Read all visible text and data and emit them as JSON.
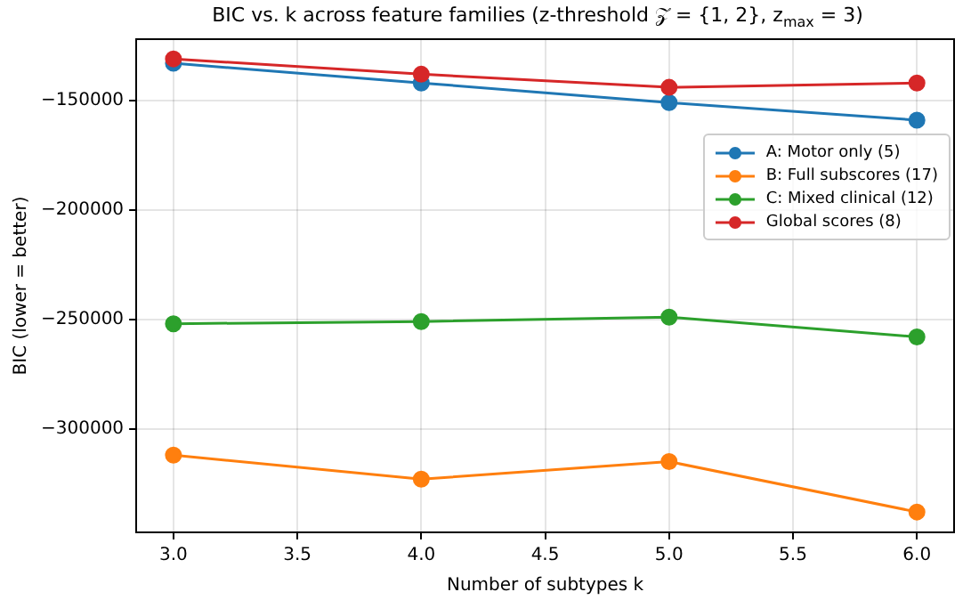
{
  "chart_data": {
    "type": "line",
    "title": "BIC vs. k across feature families (z-threshold 𝒵 = {1, 2}, z$_{max}$ = 3)",
    "xlabel": "Number of subtypes k",
    "ylabel": "BIC (lower = better)",
    "x": [
      3,
      4,
      5,
      6
    ],
    "series": [
      {
        "name": "A: Motor only (5)",
        "color": "#1f77b4",
        "values": [
          -133000,
          -142000,
          -151000,
          -159000
        ]
      },
      {
        "name": "B: Full subscores (17)",
        "color": "#ff7f0e",
        "values": [
          -312000,
          -323000,
          -315000,
          -338000
        ]
      },
      {
        "name": "C: Mixed clinical (12)",
        "color": "#2ca02c",
        "values": [
          -252000,
          -251000,
          -249000,
          -258000
        ]
      },
      {
        "name": "Global scores (8)",
        "color": "#d62728",
        "values": [
          -131000,
          -138000,
          -144000,
          -142000
        ]
      }
    ],
    "xlim": [
      2.85,
      6.15
    ],
    "ylim": [
      -347300,
      -122000
    ],
    "xticks": [
      {
        "value": 3,
        "label": "3.0"
      },
      {
        "value": 3.5,
        "label": "3.5"
      },
      {
        "value": 4,
        "label": "4.0"
      },
      {
        "value": 4.5,
        "label": "4.5"
      },
      {
        "value": 5,
        "label": "5.0"
      },
      {
        "value": 5.5,
        "label": "5.5"
      },
      {
        "value": 6,
        "label": "6.0"
      }
    ],
    "yticks": [
      {
        "value": -300000,
        "label": "−300000"
      },
      {
        "value": -250000,
        "label": "−250000"
      },
      {
        "value": -200000,
        "label": "−200000"
      },
      {
        "value": -150000,
        "label": "−150000"
      }
    ],
    "grid": true,
    "legend": "right",
    "marker": "circle",
    "line_style": "solid"
  }
}
